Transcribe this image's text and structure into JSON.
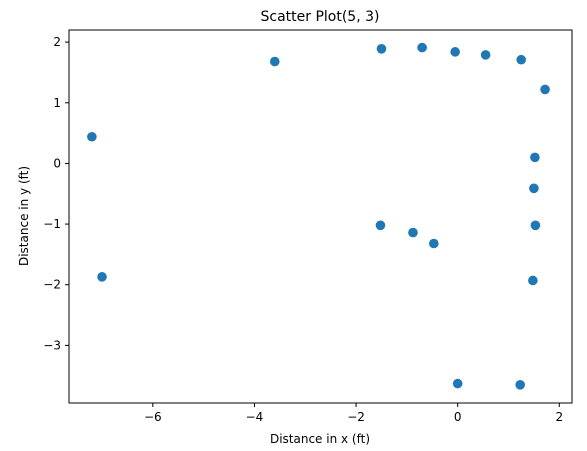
{
  "chart_data": {
    "type": "scatter",
    "title": "Scatter Plot(5, 3)",
    "xlabel": "Distance in x (ft)",
    "ylabel": "Distance in y (ft)",
    "xlim": [
      -7.65,
      2.25
    ],
    "ylim": [
      -3.95,
      2.2
    ],
    "xticks": [
      -6,
      -4,
      -2,
      0,
      2
    ],
    "yticks": [
      -3,
      -2,
      -1,
      0,
      1,
      2
    ],
    "grid": false,
    "marker_color": "#1f77b4",
    "x": [
      -7.2,
      -7.0,
      -3.6,
      -1.5,
      -0.7,
      -0.05,
      0.55,
      1.25,
      1.72,
      -1.52,
      -0.88,
      -0.47,
      1.52,
      1.5,
      1.53,
      1.48,
      0.0,
      1.23
    ],
    "y": [
      0.44,
      -1.87,
      1.68,
      1.89,
      1.91,
      1.84,
      1.79,
      1.71,
      1.22,
      -1.02,
      -1.14,
      -1.32,
      0.1,
      -0.41,
      -1.02,
      -1.93,
      -3.63,
      -3.65
    ]
  }
}
